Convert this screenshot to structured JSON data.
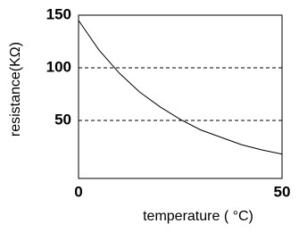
{
  "chart_data": {
    "type": "line",
    "xlabel": "temperature ( °C)",
    "ylabel": "resistance(KΩ)",
    "x": [
      0,
      5,
      10,
      15,
      20,
      25,
      30,
      35,
      40,
      45,
      50
    ],
    "series": [
      {
        "color": "#000000",
        "values": [
          145,
          117,
          95,
          77,
          63,
          51,
          41,
          34,
          27,
          22,
          18
        ]
      }
    ],
    "xlim": [
      0,
      50
    ],
    "xticks": [
      0,
      50
    ],
    "ylim": [
      0,
      150
    ],
    "yticks": [
      50,
      100,
      150
    ],
    "grid": true
  }
}
